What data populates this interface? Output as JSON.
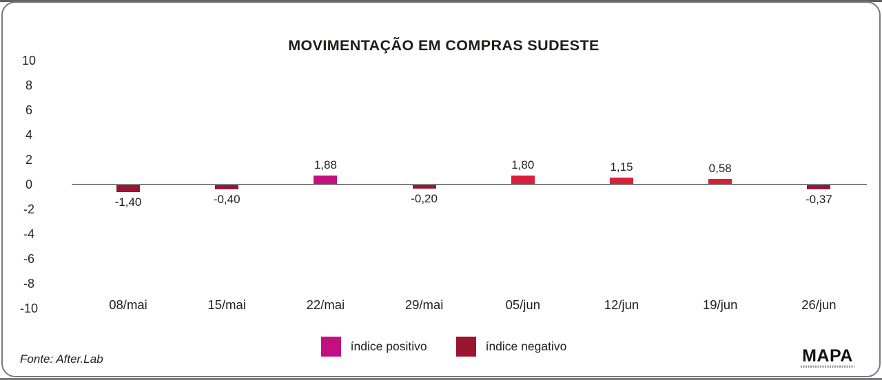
{
  "chart_data": {
    "type": "bar",
    "title": "MOVIMENTAÇÃO EM COMPRAS SUDESTE",
    "categories": [
      "08/mai",
      "15/mai",
      "22/mai",
      "29/mai",
      "05/jun",
      "12/jun",
      "19/jun",
      "26/jun"
    ],
    "values": [
      -1.4,
      -0.4,
      1.88,
      -0.2,
      1.8,
      1.15,
      0.58,
      -0.37
    ],
    "value_labels": [
      "-1,40",
      "-0,40",
      "1,88",
      "-0,20",
      "1,80",
      "1,15",
      "0,58",
      "-0,37"
    ],
    "bar_colors": [
      "#9b1533",
      "#9b1533",
      "#c2117f",
      "#9b1533",
      "#d91f3a",
      "#d91f3a",
      "#d91f3a",
      "#9b1533"
    ],
    "ylim": [
      -10,
      10
    ],
    "yticks": [
      10,
      8,
      6,
      4,
      2,
      0,
      -2,
      -4,
      -6,
      -8,
      -10
    ],
    "ytick_labels": [
      "10",
      "8",
      "6",
      "4",
      "2",
      "0",
      "-2",
      "-4",
      "-6",
      "-8",
      "-10"
    ],
    "xlabel": "",
    "ylabel": "",
    "grid": false,
    "legend": {
      "position": "bottom",
      "items": [
        {
          "label": "índice positivo",
          "color": "#c2117f"
        },
        {
          "label": "índice negativo",
          "color": "#9b1533"
        }
      ]
    }
  },
  "footer": {
    "source": "Fonte: After.Lab",
    "logo": "MAPA"
  },
  "colors": {
    "positive_magenta": "#c2117f",
    "positive_crimson": "#d91f3a",
    "negative_maroon": "#9b1533",
    "axis_line": "#7f7f7f",
    "card_border": "#77777d",
    "text": "#1d1d1b"
  }
}
